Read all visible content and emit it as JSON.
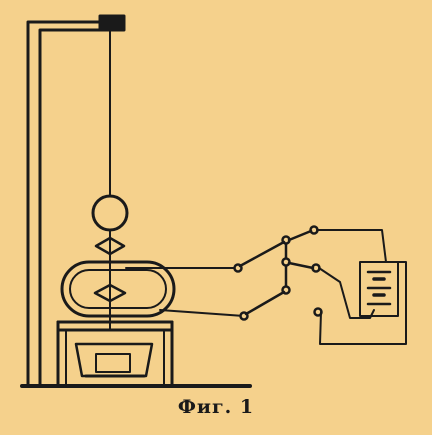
{
  "figure": {
    "caption": "Фиг. 1",
    "colors": {
      "background": "#f5d18c",
      "ink": "#1a1a1a"
    }
  }
}
